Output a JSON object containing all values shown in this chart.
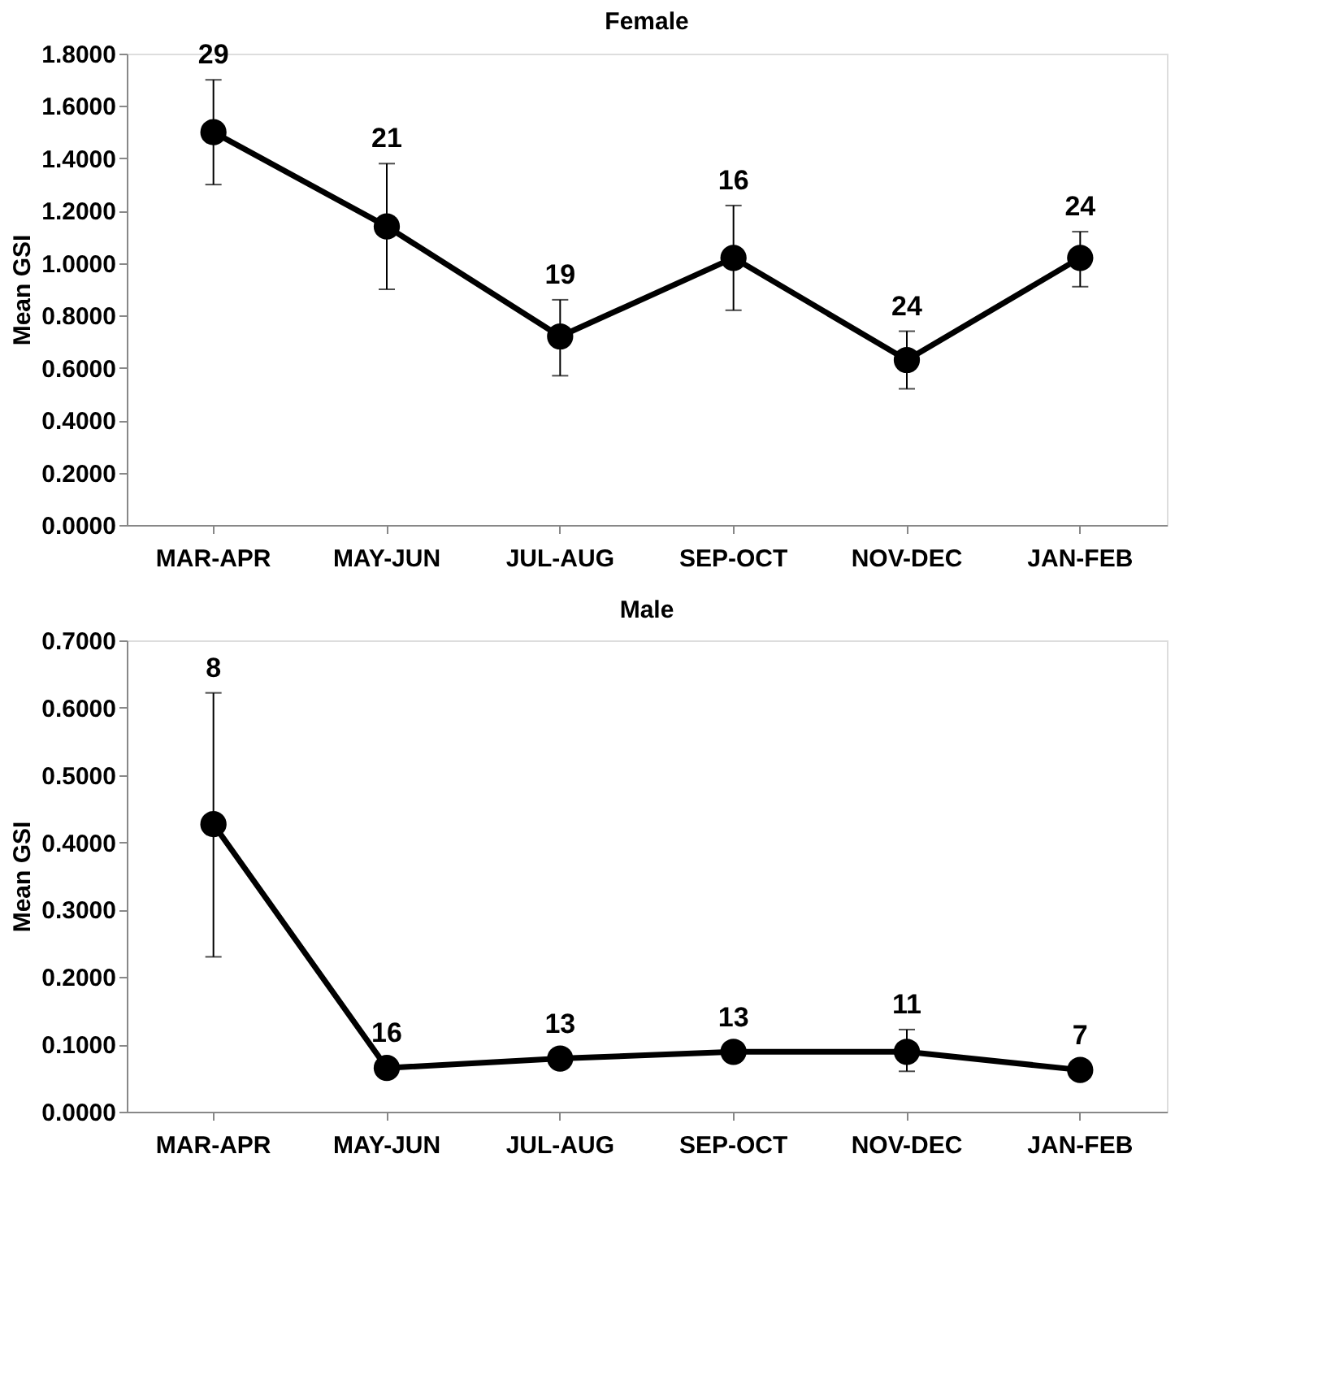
{
  "chart_data": [
    {
      "type": "line",
      "title": "Female",
      "ylabel": "Mean GSI",
      "categories": [
        "MAR-APR",
        "MAY-JUN",
        "JUL-AUG",
        "SEP-OCT",
        "NOV-DEC",
        "JAN-FEB"
      ],
      "series": [
        {
          "color": "#000000",
          "values": [
            1.5,
            1.14,
            0.72,
            1.02,
            0.63,
            1.02
          ],
          "errors": [
            [
              1.3,
              1.7
            ],
            [
              0.9,
              1.38
            ],
            [
              0.57,
              0.86
            ],
            [
              0.82,
              1.22
            ],
            [
              0.52,
              0.74
            ],
            [
              0.91,
              1.12
            ]
          ]
        }
      ],
      "annotations": [
        "29",
        "21",
        "19",
        "16",
        "24",
        "24"
      ],
      "ylim": [
        0,
        1.8
      ],
      "yticks": [
        {
          "value": 0,
          "label": "0.0000"
        },
        {
          "value": 0.2,
          "label": "0.2000"
        },
        {
          "value": 0.4,
          "label": "0.4000"
        },
        {
          "value": 0.6,
          "label": "0.6000"
        },
        {
          "value": 0.8,
          "label": "0.8000"
        },
        {
          "value": 1.0,
          "label": "1.0000"
        },
        {
          "value": 1.2,
          "label": "1.2000"
        },
        {
          "value": 1.4,
          "label": "1.4000"
        },
        {
          "value": 1.6,
          "label": "1.6000"
        },
        {
          "value": 1.8,
          "label": "1.8000"
        }
      ],
      "grid": false,
      "marker": "circle",
      "line_style": "solid"
    },
    {
      "type": "line",
      "title": "Male",
      "ylabel": "Mean GSI",
      "categories": [
        "MAR-APR",
        "MAY-JUN",
        "JUL-AUG",
        "SEP-OCT",
        "NOV-DEC",
        "JAN-FEB"
      ],
      "series": [
        {
          "color": "#000000",
          "values": [
            0.427,
            0.065,
            0.079,
            0.089,
            0.089,
            0.062
          ],
          "errors": [
            [
              0.23,
              0.622
            ],
            null,
            null,
            [
              0.075,
              0.103
            ],
            [
              0.06,
              0.122
            ],
            null
          ]
        }
      ],
      "annotations": [
        "8",
        "16",
        "13",
        "13",
        "11",
        "7"
      ],
      "ylim": [
        0,
        0.7
      ],
      "yticks": [
        {
          "value": 0,
          "label": "0.0000"
        },
        {
          "value": 0.1,
          "label": "0.1000"
        },
        {
          "value": 0.2,
          "label": "0.2000"
        },
        {
          "value": 0.3,
          "label": "0.3000"
        },
        {
          "value": 0.4,
          "label": "0.4000"
        },
        {
          "value": 0.5,
          "label": "0.5000"
        },
        {
          "value": 0.6,
          "label": "0.6000"
        },
        {
          "value": 0.7,
          "label": "0.7000"
        }
      ],
      "grid": false,
      "marker": "circle",
      "line_style": "solid"
    }
  ]
}
